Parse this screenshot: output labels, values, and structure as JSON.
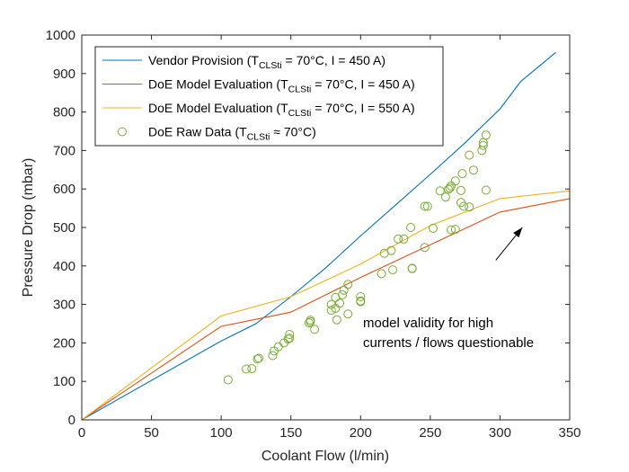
{
  "chart_data": {
    "type": "line",
    "title": "",
    "xlabel": "Coolant Flow (l/min)",
    "ylabel": "Pressure Drop (mbar)",
    "xlim": [
      0,
      350
    ],
    "ylim": [
      0,
      1000
    ],
    "xticks": [
      "0",
      "50",
      "100",
      "150",
      "200",
      "250",
      "300",
      "350"
    ],
    "yticks": [
      "0",
      "100",
      "200",
      "300",
      "400",
      "500",
      "600",
      "700",
      "800",
      "900",
      "1000"
    ],
    "grid": false,
    "legend_position": "top-left",
    "colors": {
      "vendor": "#0072BD",
      "doe450": "#D95319",
      "doe550": "#EDB120",
      "raw": "#77AC30"
    },
    "series": [
      {
        "name_main": "Vendor Provision (T",
        "name_sub": "CLSti",
        "name_rest": " = 70°C, I = 450 A)",
        "color": "#0072BD",
        "style": "line",
        "x": [
          0,
          100,
          125,
          150,
          175,
          200,
          225,
          250,
          275,
          300,
          315,
          340
        ],
        "y": [
          0,
          205,
          250,
          320,
          395,
          478,
          558,
          638,
          720,
          808,
          880,
          955
        ]
      },
      {
        "name_main": "DoE Model Evaluation (T",
        "name_sub": "CLSti",
        "name_rest": " = 70°C, I = 450 A)",
        "color": "#D95319",
        "style": "line",
        "x": [
          0,
          100,
          150,
          200,
          250,
          300,
          350
        ],
        "y": [
          0,
          243,
          280,
          370,
          455,
          540,
          575
        ]
      },
      {
        "name_main": "DoE Model Evaluation (T",
        "name_sub": "CLSti",
        "name_rest": " = 70°C, I = 550 A)",
        "color": "#EDB120",
        "style": "line",
        "x": [
          0,
          100,
          150,
          200,
          250,
          300,
          350
        ],
        "y": [
          0,
          270,
          320,
          405,
          505,
          575,
          595
        ]
      },
      {
        "name_main": "DoE Raw Data (T",
        "name_sub": "CLSti",
        "name_rest": " ≈ 70°C)",
        "color": "#77AC30",
        "style": "scatter",
        "x": [
          105,
          118,
          122,
          126,
          127,
          137,
          138,
          141,
          145,
          148,
          149,
          149,
          163,
          164,
          164,
          167,
          179,
          179,
          182,
          182,
          183,
          185,
          187,
          188,
          191,
          191,
          200,
          200,
          200,
          215,
          217,
          222,
          223,
          227,
          231,
          236,
          237,
          237,
          246,
          246,
          248,
          252,
          257,
          261,
          263,
          264,
          265,
          265,
          268,
          268,
          272,
          272,
          273,
          274,
          278,
          278,
          281,
          287,
          288,
          288,
          290,
          290
        ],
        "y": [
          104,
          132,
          133,
          158,
          160,
          167,
          179,
          190,
          200,
          210,
          212,
          222,
          252,
          259,
          255,
          235,
          285,
          300,
          318,
          290,
          260,
          303,
          325,
          337,
          352,
          275,
          320,
          309,
          307,
          380,
          433,
          440,
          390,
          470,
          470,
          500,
          394,
          393,
          555,
          448,
          555,
          498,
          595,
          579,
          599,
          602,
          608,
          494,
          621,
          495,
          565,
          596,
          640,
          555,
          688,
          553,
          649,
          700,
          713,
          720,
          597,
          740
        ]
      }
    ],
    "annotation": {
      "line1": "model validity for high",
      "line2": "currents / flows questionable",
      "arrow_tail": [
        297,
        415
      ],
      "arrow_head": [
        316,
        500
      ]
    }
  }
}
